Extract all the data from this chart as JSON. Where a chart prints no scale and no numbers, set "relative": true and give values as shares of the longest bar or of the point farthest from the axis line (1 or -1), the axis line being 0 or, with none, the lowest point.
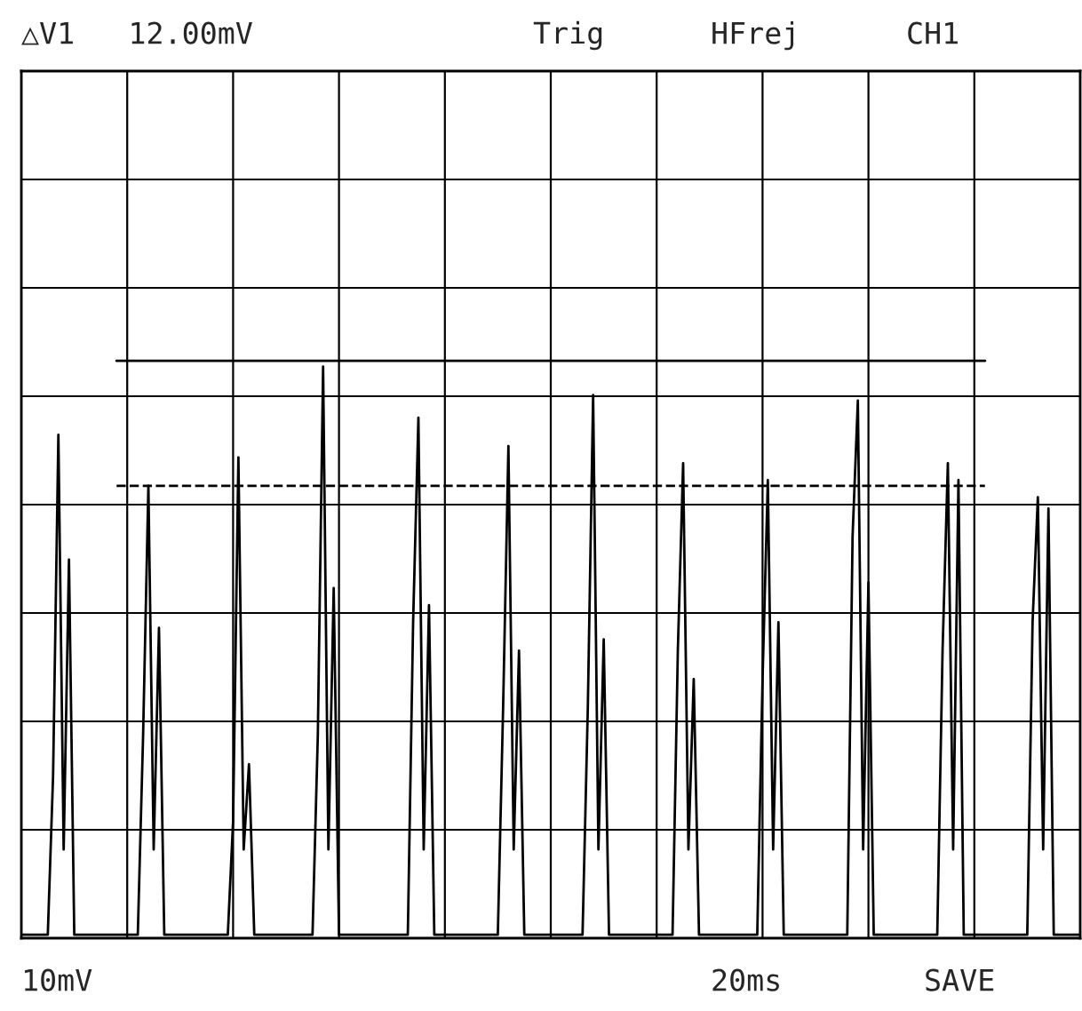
{
  "chart_data": {
    "type": "line",
    "relative": true,
    "categories": [
      null,
      null,
      null,
      null,
      null,
      null,
      null,
      null,
      null,
      null,
      null,
      null,
      null,
      null,
      null,
      null,
      null,
      null,
      null,
      null,
      null,
      null,
      null,
      null,
      null,
      null,
      null,
      null,
      null,
      null,
      null,
      null,
      null,
      null,
      null,
      null,
      null,
      null,
      null,
      null,
      null,
      null,
      null,
      null,
      null,
      null,
      null,
      null,
      null,
      null,
      null,
      null,
      null,
      null,
      null,
      null,
      null,
      null,
      null,
      null,
      null,
      null,
      null,
      null,
      null,
      null,
      null,
      null,
      null,
      null,
      null,
      null,
      null,
      null,
      null,
      null,
      null,
      null,
      null,
      null,
      null,
      null,
      null,
      null,
      null,
      null,
      null,
      null,
      null,
      null,
      null,
      null,
      null,
      null,
      null,
      null,
      null,
      null,
      null,
      null,
      null,
      null,
      null,
      null,
      null,
      null,
      null,
      null,
      null,
      null,
      null,
      null,
      null,
      null,
      null,
      null,
      null,
      null,
      null,
      null,
      null,
      null,
      null,
      null,
      null,
      null,
      null,
      null,
      null,
      null,
      null,
      null,
      null,
      null,
      null,
      null,
      null,
      null,
      null,
      null,
      null,
      null,
      null,
      null,
      null,
      null,
      null,
      null,
      null,
      null,
      null,
      null,
      null,
      null,
      null,
      null,
      null,
      null,
      null,
      null,
      null,
      null,
      null,
      null,
      null,
      null,
      null,
      null,
      null,
      null,
      null,
      null,
      null,
      null,
      null,
      null,
      null,
      null,
      null,
      null,
      null,
      null,
      null,
      null,
      null,
      null,
      null,
      null,
      null,
      null,
      null,
      null,
      null,
      null,
      null,
      null,
      null,
      null,
      null,
      null,
      null
    ],
    "series": [
      {
        "color": "#000000",
        "values": [
          0,
          0,
          0,
          0,
          0,
          0,
          0.28,
          0.88,
          0.15,
          0.66,
          0,
          0,
          0,
          0,
          0,
          0,
          0,
          0,
          0,
          0,
          0,
          0,
          0,
          0.35,
          0.79,
          0.15,
          0.54,
          0,
          0,
          0,
          0,
          0,
          0,
          0,
          0,
          0,
          0,
          0,
          0,
          0,
          0.2,
          0.84,
          0.15,
          0.3,
          0,
          0,
          0,
          0,
          0,
          0,
          0,
          0,
          0,
          0,
          0,
          0,
          0.35,
          1.0,
          0.15,
          0.61,
          0,
          0,
          0,
          0,
          0,
          0,
          0,
          0,
          0,
          0,
          0,
          0,
          0,
          0,
          0.55,
          0.91,
          0.15,
          0.58,
          0,
          0,
          0,
          0,
          0,
          0,
          0,
          0,
          0,
          0,
          0,
          0,
          0,
          0.4,
          0.86,
          0.15,
          0.5,
          0,
          0,
          0,
          0,
          0,
          0,
          0,
          0,
          0,
          0,
          0,
          0,
          0.4,
          0.95,
          0.15,
          0.52,
          0,
          0,
          0,
          0,
          0,
          0,
          0,
          0,
          0,
          0,
          0,
          0,
          0,
          0.5,
          0.83,
          0.15,
          0.45,
          0,
          0,
          0,
          0,
          0,
          0,
          0,
          0,
          0,
          0,
          0,
          0,
          0.45,
          0.8,
          0.15,
          0.55,
          0,
          0,
          0,
          0,
          0,
          0,
          0,
          0,
          0,
          0,
          0,
          0,
          0,
          0.7,
          0.94,
          0.15,
          0.62,
          0,
          0,
          0,
          0,
          0,
          0,
          0,
          0,
          0,
          0,
          0,
          0,
          0,
          0.5,
          0.83,
          0.15,
          0.8,
          0,
          0,
          0,
          0,
          0,
          0,
          0,
          0,
          0,
          0,
          0,
          0,
          0,
          0.55,
          0.77,
          0.15,
          0.75,
          0,
          0,
          0,
          0,
          0,
          0
        ]
      }
    ],
    "tick_labels": false,
    "grid": true,
    "ref_lines": [
      {
        "axis": "y",
        "value": 1.01,
        "line_style": "solid",
        "color": "#000000"
      },
      {
        "axis": "y",
        "value": 0.79,
        "line_style": "dashed",
        "color": "#000000"
      }
    ],
    "annotations": [
      "△V1   12.00mV",
      "Trig",
      "HFrej",
      "CH1",
      "10mV",
      "20ms",
      "SAVE"
    ]
  }
}
